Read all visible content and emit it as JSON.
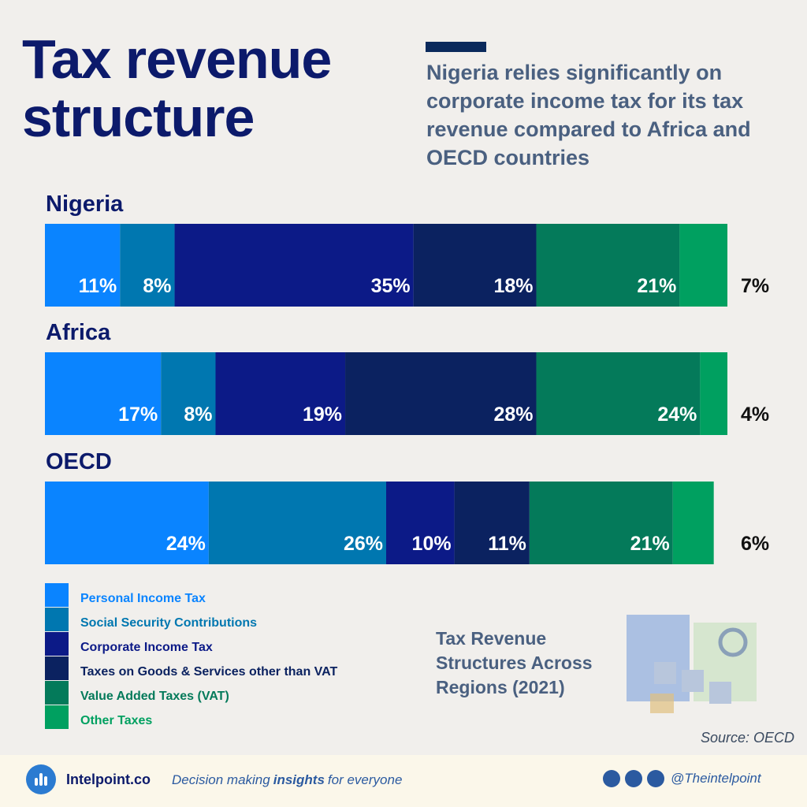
{
  "chart_data": {
    "type": "stacked-bar",
    "title": "Tax revenue structure",
    "subtitle": "Nigeria relies significantly on corporate income tax for its tax revenue compared to Africa and OECD countries",
    "note": "Tax Revenue Structures Across Regions (2021)",
    "source": "Source: OECD",
    "categories": [
      "Nigeria",
      "Africa",
      "OECD"
    ],
    "xlim": [
      0,
      100
    ],
    "series": [
      {
        "name": "Personal Income Tax",
        "color": "#0a84ff",
        "values": [
          11,
          17,
          24
        ],
        "value_labels": [
          "11%",
          "17%",
          "24%"
        ]
      },
      {
        "name": "Social Security Contributions",
        "color": "#0077b0",
        "values": [
          8,
          8,
          26
        ],
        "value_labels": [
          "8%",
          "8%",
          "26%"
        ]
      },
      {
        "name": "Corporate Income Tax",
        "color": "#0c1a87",
        "values": [
          35,
          19,
          10
        ],
        "value_labels": [
          "35%",
          "19%",
          "10%"
        ]
      },
      {
        "name": "Taxes on Goods & Services other than VAT",
        "color": "#0b2260",
        "values": [
          18,
          28,
          11
        ],
        "value_labels": [
          "18%",
          "28%",
          "11%"
        ]
      },
      {
        "name": "Value Added Taxes (VAT)",
        "color": "#047a5a",
        "values": [
          21,
          24,
          21
        ],
        "value_labels": [
          "21%",
          "24%",
          "21%"
        ]
      },
      {
        "name": "Other Taxes",
        "color": "#00a060",
        "values": [
          7,
          4,
          6
        ],
        "value_labels": [
          "7%",
          "4%",
          "6%"
        ]
      }
    ]
  },
  "footer": {
    "brand": "Intelpoint.co",
    "tagline": [
      "Decision making",
      "insights",
      "for everyone"
    ],
    "handle": "@Theintelpoint"
  }
}
